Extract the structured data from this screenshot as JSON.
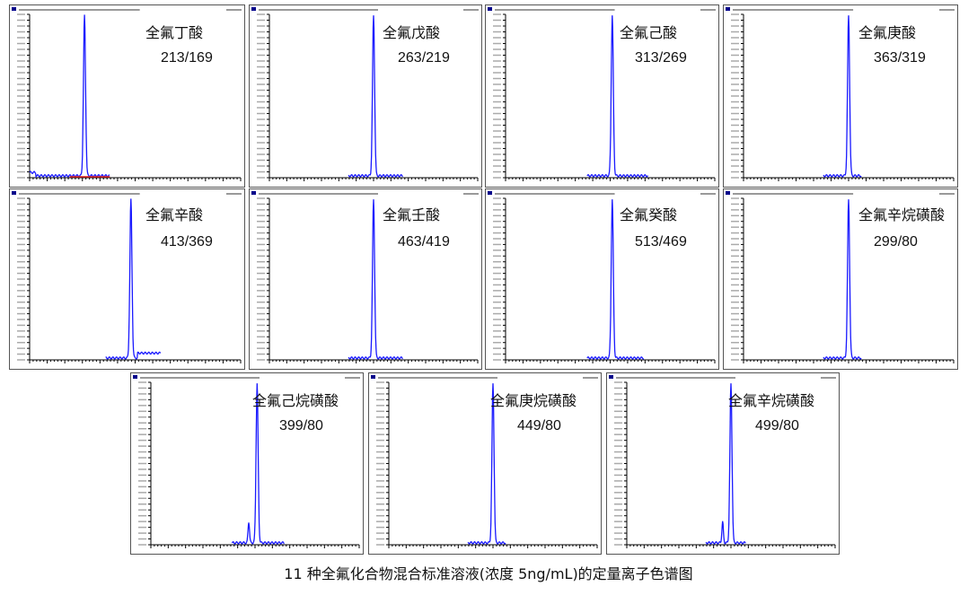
{
  "caption": "11 种全氟化合物混合标准溶液(浓度 5ng/mL)的定量离子色谱图",
  "colors": {
    "trace": "#1a1aff",
    "baseline_marker": "#e02020",
    "axis": "#000000"
  },
  "chart_data": [
    {
      "type": "line",
      "compound": "全氟丁酸",
      "transition": "213/169",
      "xlim": [
        0,
        10
      ],
      "peak_rt": 2.6,
      "noise_end": 3.8,
      "prepeak": null
    },
    {
      "type": "line",
      "compound": "全氟戊酸",
      "transition": "263/219",
      "xlim": [
        0,
        10
      ],
      "peak_rt": 5.0,
      "noise_end": 6.4,
      "prepeak": null
    },
    {
      "type": "line",
      "compound": "全氟己酸",
      "transition": "313/269",
      "xlim": [
        0,
        10
      ],
      "peak_rt": 5.1,
      "noise_end": 6.8,
      "prepeak": null
    },
    {
      "type": "line",
      "compound": "全氟庚酸",
      "transition": "363/319",
      "xlim": [
        0,
        10
      ],
      "peak_rt": 5.0,
      "noise_end": 5.6,
      "prepeak": null
    },
    {
      "type": "line",
      "compound": "全氟辛酸",
      "transition": "413/369",
      "xlim": [
        0,
        10
      ],
      "peak_rt": 4.8,
      "noise_end": 6.2,
      "prepeak": null
    },
    {
      "type": "line",
      "compound": "全氟壬酸",
      "transition": "463/419",
      "xlim": [
        0,
        10
      ],
      "peak_rt": 5.0,
      "noise_end": 6.4,
      "prepeak": null
    },
    {
      "type": "line",
      "compound": "全氟癸酸",
      "transition": "513/469",
      "xlim": [
        0,
        10
      ],
      "peak_rt": 5.1,
      "noise_end": 6.6,
      "prepeak": null
    },
    {
      "type": "line",
      "compound": "全氟辛烷磺酸",
      "transition": "299/80",
      "xlim": [
        0,
        10
      ],
      "peak_rt": 5.0,
      "noise_end": 5.6,
      "prepeak": null
    },
    {
      "type": "line",
      "compound": "全氟己烷磺酸",
      "transition": "399/80",
      "xlim": [
        0,
        10
      ],
      "peak_rt": 5.1,
      "noise_end": 6.4,
      "prepeak": 4.7
    },
    {
      "type": "line",
      "compound": "全氟庚烷磺酸",
      "transition": "449/80",
      "xlim": [
        0,
        10
      ],
      "peak_rt": 5.0,
      "noise_end": 5.6,
      "prepeak": null
    },
    {
      "type": "line",
      "compound": "全氟辛烷磺酸",
      "transition": "499/80",
      "xlim": [
        0,
        10
      ],
      "peak_rt": 5.0,
      "noise_end": 5.7,
      "prepeak": 4.6
    }
  ]
}
